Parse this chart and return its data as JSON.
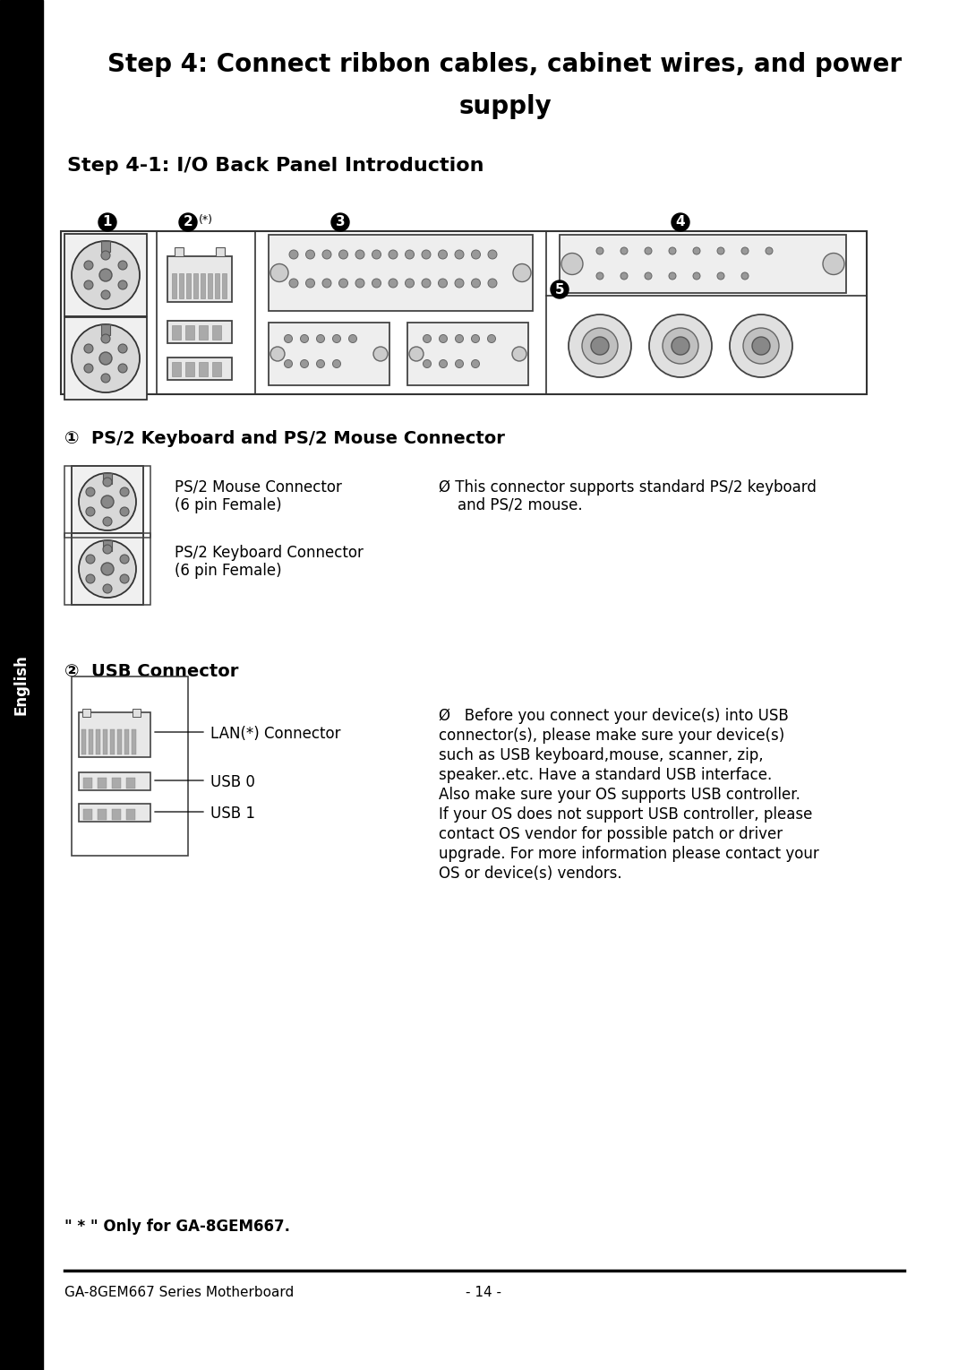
{
  "title_line1": "Step 4: Connect ribbon cables, cabinet wires, and power",
  "title_line2": "supply",
  "subtitle": "Step 4-1: I/O Back Panel Introduction",
  "section1_header": "①  PS/2 Keyboard and PS/2 Mouse Connector",
  "section1_col1_line1": "PS/2 Mouse Connector",
  "section1_col1_line2": "(6 pin Female)",
  "section1_col1_line3": "PS/2 Keyboard Connector",
  "section1_col1_line4": "(6 pin Female)",
  "section1_col2_line1": "Ø This connector supports standard PS/2 keyboard",
  "section1_col2_line2": "    and PS/2 mouse.",
  "section2_header": "②  USB Connector",
  "section2_col1_line1": "LAN(*) Connector",
  "section2_col1_line2": "USB 0",
  "section2_col1_line3": "USB 1",
  "section2_col2_line1": "Ø   Before you connect your device(s) into USB",
  "section2_col2_line2": "connector(s), please make sure your device(s)",
  "section2_col2_line3": "such as USB keyboard,mouse, scanner, zip,",
  "section2_col2_line4": "speaker..etc. Have a standard USB interface.",
  "section2_col2_line5": "Also make sure your OS supports USB controller.",
  "section2_col2_line6": "If your OS does not support USB controller, please",
  "section2_col2_line7": "contact OS vendor for possible patch or driver",
  "section2_col2_line8": "upgrade. For more information please contact your",
  "section2_col2_line9": "OS or device(s) vendors.",
  "footer_note": "\" * \" Only for GA-8GEM667.",
  "footer_left": "GA-8GEM667 Series Motherboard",
  "footer_right": "- 14 -",
  "sidebar_text": "English",
  "bg_color": "#ffffff",
  "sidebar_color": "#000000",
  "text_color": "#000000"
}
